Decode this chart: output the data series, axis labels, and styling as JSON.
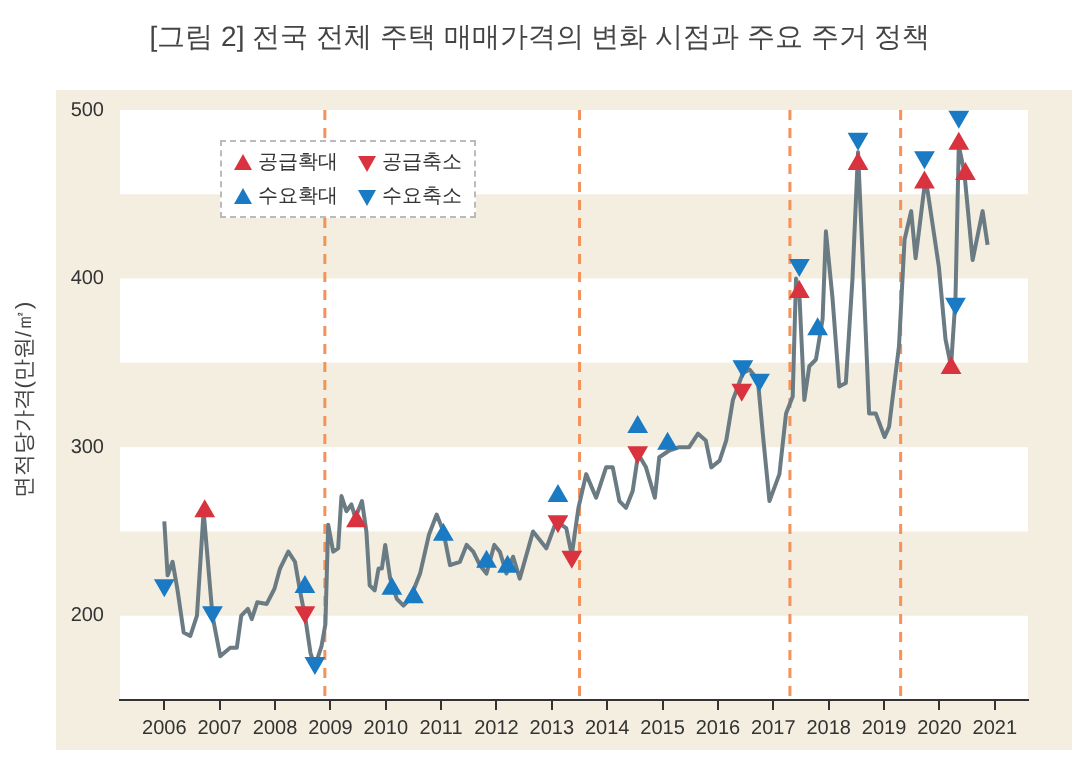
{
  "chart_data": {
    "type": "line",
    "title": "[그림 2] 전국 전체 주택 매매가격의 변화 시점과 주요 주거 정책",
    "ylabel": "면적당가격(만원/㎡)",
    "xlim": [
      2005.2,
      2021.6
    ],
    "xticks": [
      2006,
      2007,
      2008,
      2009,
      2010,
      2011,
      2012,
      2013,
      2014,
      2015,
      2016,
      2017,
      2018,
      2019,
      2020,
      2021
    ],
    "ylim": [
      150,
      500
    ],
    "yticks": [
      200,
      300,
      400,
      500
    ],
    "grid": false,
    "legend": "top left",
    "bands": [
      {
        "axis": "y",
        "from": 200,
        "to": 250,
        "color": "#f3eedf"
      },
      {
        "axis": "y",
        "from": 300,
        "to": 350,
        "color": "#f3eedf"
      },
      {
        "axis": "y",
        "from": 400,
        "to": 450,
        "color": "#f3eedf"
      }
    ],
    "ref_lines": [
      {
        "axis": "x",
        "value": 2008.9,
        "color": "#f4925a",
        "line_style": "dashed"
      },
      {
        "axis": "x",
        "value": 2013.5,
        "color": "#f4925a",
        "line_style": "dashed"
      },
      {
        "axis": "x",
        "value": 2017.3,
        "color": "#f4925a",
        "line_style": "dashed"
      },
      {
        "axis": "x",
        "value": 2019.3,
        "color": "#f4925a",
        "line_style": "dashed"
      }
    ],
    "series": [
      {
        "color": "#6b7b83",
        "marker": "none",
        "line_style": "solid",
        "x": [
          2006.0,
          2006.06,
          2006.15,
          2006.24,
          2006.35,
          2006.47,
          2006.59,
          2006.71,
          2006.87,
          2007.01,
          2007.19,
          2007.31,
          2007.39,
          2007.51,
          2007.58,
          2007.68,
          2007.85,
          2007.99,
          2008.09,
          2008.24,
          2008.36,
          2008.45,
          2008.55,
          2008.64,
          2008.72,
          2008.84,
          2008.91,
          2008.96,
          2009.05,
          2009.14,
          2009.2,
          2009.29,
          2009.38,
          2009.45,
          2009.57,
          2009.65,
          2009.71,
          2009.8,
          2009.87,
          2009.93,
          2009.99,
          2010.08,
          2010.2,
          2010.32,
          2010.44,
          2010.62,
          2010.78,
          2010.92,
          2011.04,
          2011.16,
          2011.34,
          2011.46,
          2011.58,
          2011.7,
          2011.82,
          2011.96,
          2012.06,
          2012.18,
          2012.3,
          2012.42,
          2012.66,
          2012.9,
          2013.08,
          2013.26,
          2013.36,
          2013.48,
          2013.62,
          2013.8,
          2013.98,
          2014.1,
          2014.22,
          2014.34,
          2014.46,
          2014.56,
          2014.7,
          2014.86,
          2014.94,
          2015.12,
          2015.3,
          2015.48,
          2015.64,
          2015.78,
          2015.88,
          2016.03,
          2016.15,
          2016.27,
          2016.45,
          2016.57,
          2016.72,
          2016.81,
          2016.93,
          2017.11,
          2017.23,
          2017.35,
          2017.41,
          2017.47,
          2017.56,
          2017.65,
          2017.77,
          2017.89,
          2017.95,
          2018.07,
          2018.19,
          2018.31,
          2018.43,
          2018.53,
          2018.61,
          2018.73,
          2018.85,
          2019.01,
          2019.09,
          2019.27,
          2019.37,
          2019.49,
          2019.57,
          2019.75,
          2019.9,
          2019.99,
          2020.11,
          2020.21,
          2020.29,
          2020.35,
          2020.45,
          2020.6,
          2020.78,
          2020.87
        ],
        "values": [
          256,
          224,
          232,
          215,
          190,
          188,
          200,
          262,
          200,
          176,
          181,
          181,
          200,
          204,
          198,
          208,
          207,
          216,
          228,
          238,
          232,
          215,
          198,
          178,
          170,
          182,
          195,
          254,
          238,
          240,
          271,
          262,
          266,
          258,
          268,
          250,
          218,
          215,
          228,
          228,
          242,
          222,
          210,
          206,
          210,
          225,
          248,
          260,
          250,
          230,
          232,
          242,
          238,
          230,
          225,
          242,
          238,
          225,
          235,
          222,
          250,
          240,
          256,
          252,
          236,
          264,
          284,
          270,
          288,
          288,
          268,
          264,
          274,
          296,
          288,
          270,
          294,
          298,
          300,
          300,
          308,
          304,
          288,
          292,
          304,
          328,
          344,
          346,
          340,
          308,
          268,
          284,
          320,
          330,
          400,
          391,
          328,
          348,
          352,
          376,
          428,
          388,
          336,
          338,
          400,
          475,
          415,
          320,
          320,
          306,
          312,
          360,
          423,
          440,
          412,
          460,
          427,
          407,
          364,
          348,
          388,
          479,
          463,
          411,
          440,
          420
        ]
      },
      {
        "type": "scatter",
        "name": "공급확대",
        "color": "#d9333f",
        "marker": "triangle",
        "x": [
          2006.73,
          2009.47,
          2017.47,
          2018.53,
          2019.73,
          2020.21,
          2020.35,
          2020.47
        ],
        "values": [
          262,
          256,
          392,
          468,
          457,
          347,
          480,
          462
        ]
      },
      {
        "type": "scatter",
        "name": "공급축소",
        "color": "#d9333f",
        "marker": "triangle-down",
        "x": [
          2008.54,
          2013.11,
          2013.36,
          2014.55,
          2016.43
        ],
        "values": [
          202,
          256,
          235,
          297,
          334
        ]
      },
      {
        "type": "scatter",
        "name": "수요확대",
        "color": "#1a7bc4",
        "marker": "triangle",
        "x": [
          2008.54,
          2010.11,
          2010.5,
          2011.04,
          2011.82,
          2012.2,
          2013.11,
          2014.55,
          2015.09,
          2017.8
        ],
        "values": [
          217,
          216,
          211,
          248,
          232,
          229,
          271,
          312,
          302,
          370
        ]
      },
      {
        "type": "scatter",
        "name": "수요축소",
        "color": "#1a7bc4",
        "marker": "triangle-down",
        "x": [
          2006.0,
          2006.87,
          2008.72,
          2016.45,
          2016.75,
          2017.47,
          2018.53,
          2019.73,
          2020.29,
          2020.35
        ],
        "values": [
          218,
          202,
          172,
          348,
          340,
          408,
          483,
          472,
          385,
          496
        ]
      }
    ]
  }
}
